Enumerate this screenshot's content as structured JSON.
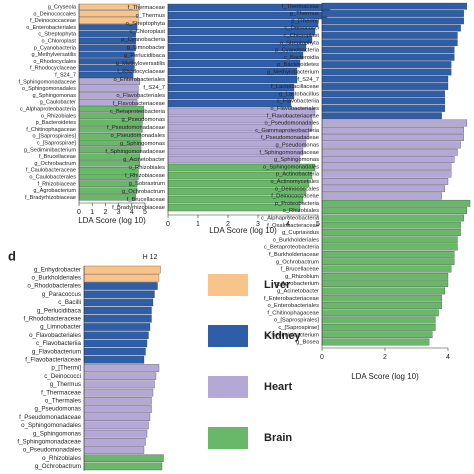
{
  "chart_data": [
    {
      "type": "bar",
      "orientation": "horizontal",
      "xlabel": "LDA Score (log 10)",
      "categories": [
        "g_Cryseola",
        "o_Deinococcales",
        "f_Deinococcaceae",
        "o_Enterobacteriales",
        "c_Streptophyta",
        "o_Chloroplast",
        "p_Cyanobacteria",
        "g_Methylversatilis",
        "o_Rhodocyclales",
        "f_Rhodocyclaceae",
        "f_S24_7",
        "f_Sphingomonadaceae",
        "o_Sphingomonadales",
        "g_Sphingomonas",
        "g_Caulobacter",
        "c_Alphaproteobacteria",
        "o_Rhizobiales",
        "p_Bacteroidetes",
        "f_Chitinophagaceae",
        "o_[Saprospirales]",
        "c_[Saprospirae]",
        "g_Sediminibacterium",
        "f_Brucellaceae",
        "g_Ochrobactrum",
        "f_Caulobacteraceae",
        "o_Caulobacterales",
        "f_Rhizobiaceae",
        "g_Agrobacterium",
        "f_Bradyrhizobiaceae"
      ],
      "values": [
        4.6,
        4.5,
        4.5,
        4.4,
        4.3,
        4.3,
        4.3,
        4.2,
        4.2,
        4.2,
        4.1,
        4.6,
        4.5,
        4.5,
        4.4,
        4.9,
        4.9,
        4.8,
        4.8,
        4.7,
        4.7,
        4.7,
        4.6,
        4.6,
        4.5,
        4.5,
        4.4,
        4.4,
        4.3
      ],
      "colors": [
        "#f9c38c",
        "#f9c38c",
        "#f9c38c",
        "#2f5ea8",
        "#2f5ea8",
        "#2f5ea8",
        "#2f5ea8",
        "#2f5ea8",
        "#2f5ea8",
        "#2f5ea8",
        "#2f5ea8",
        "#b4a8d6",
        "#b4a8d6",
        "#b4a8d6",
        "#b4a8d6",
        "#69b86a",
        "#69b86a",
        "#69b86a",
        "#69b86a",
        "#69b86a",
        "#69b86a",
        "#69b86a",
        "#69b86a",
        "#69b86a",
        "#69b86a",
        "#69b86a",
        "#69b86a",
        "#69b86a",
        "#69b86a"
      ],
      "xlim": [
        0,
        5
      ],
      "xticks": [
        0,
        1,
        2,
        3,
        4,
        5
      ]
    },
    {
      "type": "bar",
      "orientation": "horizontal",
      "xlabel": "LDA Score (log 10)",
      "categories": [
        "f_Thermaceae",
        "g_Thermus",
        "o_Streptophyta",
        "c_Chloroplast",
        "p_Cyanobacteria",
        "g_Limnobacter",
        "g_Perlucidibaca",
        "g_Methyloversatilis",
        "f_Rhodocyclaceae",
        "o_Enterobacteriales",
        "f_S24_7",
        "o_Flavobacteriales",
        "f_Flavobacteriaceae",
        "c_Betaproteobacteria",
        "g_Pseudomonas",
        "f_Pseudomonadaceae",
        "o_Pseudomonadales",
        "g_Sphingomonas",
        "f_Sphingomonadaceae",
        "g_Acinetobacter",
        "o_Rhizobiales",
        "f_Rhizobiaceae",
        "g_Sobrastrum",
        "g_Ochrobactrum",
        "f_Brucellaceae",
        "f_Bradyrhizobiaceae"
      ],
      "values": [
        5.4,
        5.3,
        5.0,
        4.9,
        4.8,
        4.6,
        4.5,
        4.4,
        4.3,
        4.3,
        4.2,
        4.2,
        4.1,
        4.9,
        4.8,
        4.8,
        4.7,
        4.6,
        4.5,
        4.4,
        4.9,
        4.8,
        4.7,
        4.6,
        4.5,
        4.4
      ],
      "colors": [
        "#2f5ea8",
        "#2f5ea8",
        "#2f5ea8",
        "#2f5ea8",
        "#2f5ea8",
        "#2f5ea8",
        "#2f5ea8",
        "#2f5ea8",
        "#2f5ea8",
        "#2f5ea8",
        "#2f5ea8",
        "#2f5ea8",
        "#2f5ea8",
        "#b4a8d6",
        "#b4a8d6",
        "#b4a8d6",
        "#b4a8d6",
        "#b4a8d6",
        "#b4a8d6",
        "#b4a8d6",
        "#69b86a",
        "#69b86a",
        "#69b86a",
        "#69b86a",
        "#69b86a",
        "#69b86a"
      ],
      "xlim": [
        0,
        5
      ],
      "xticks": [
        0,
        1,
        2,
        3,
        4,
        5
      ]
    },
    {
      "type": "bar",
      "orientation": "horizontal",
      "xlabel": "LDA Score (log 10)",
      "categories": [
        "f_Thermaceae",
        "g_Thermus",
        "p_[Thermi]",
        "c_Deinococci",
        "c_Chloroplast",
        "o_Streptophyta",
        "p_Cyanobacteria",
        "c_Bacteroidia",
        "p_Bacteroidetes",
        "g_Methylobacterium",
        "f_S24_7",
        "f_Lactobacillaceae",
        "g_Lactobacillus",
        "c_Flavobacteriia",
        "o_Flavobacteriales",
        "f_Flavobacteriaceae",
        "o_Pseudomonadales",
        "c_Gammaproteobacteria",
        "f_Pseudomonadaceae",
        "g_Pseudomonas",
        "f_Sphingomonadaceae",
        "g_Sphingomonas",
        "o_Sphingomonadales",
        "p_Actinobacteria",
        "o_Actinomycetales",
        "o_Deinococcales",
        "f_Deinococcaceae",
        "p_Proteobacteria",
        "o_Rhizobiales",
        "c_Alphaproteobacteria",
        "f_Oxalobacteraceae",
        "g_Cupriavidus",
        "o_Burkholderiales",
        "c_Betaproteobacteria",
        "f_Burkholderiaceae",
        "g_Ochrobactrum",
        "f_Brucellaceae",
        "g_Rhizobium",
        "g_Agrobacterium",
        "g_Acinetobacter",
        "f_Enterobacteriaceae",
        "o_Enterobacteriales",
        "f_Chitinophagaceae",
        "o_[Saprospirales]",
        "c_[Saprospirae]",
        "g_Sediminibacterium",
        "g_Bosea"
      ],
      "values": [
        4.6,
        4.5,
        4.5,
        4.4,
        4.3,
        4.3,
        4.2,
        4.2,
        4.1,
        4.1,
        4.0,
        4.0,
        3.9,
        3.9,
        3.9,
        3.8,
        4.6,
        4.5,
        4.5,
        4.4,
        4.3,
        4.2,
        4.1,
        4.1,
        4.0,
        3.9,
        3.8,
        4.7,
        4.6,
        4.5,
        4.4,
        4.4,
        4.3,
        4.3,
        4.2,
        4.2,
        4.1,
        4.0,
        4.0,
        3.9,
        3.8,
        3.8,
        3.7,
        3.6,
        3.6,
        3.5,
        3.4
      ],
      "colors": [
        "#2f5ea8",
        "#2f5ea8",
        "#2f5ea8",
        "#2f5ea8",
        "#2f5ea8",
        "#2f5ea8",
        "#2f5ea8",
        "#2f5ea8",
        "#2f5ea8",
        "#2f5ea8",
        "#2f5ea8",
        "#2f5ea8",
        "#2f5ea8",
        "#2f5ea8",
        "#2f5ea8",
        "#2f5ea8",
        "#b4a8d6",
        "#b4a8d6",
        "#b4a8d6",
        "#b4a8d6",
        "#b4a8d6",
        "#b4a8d6",
        "#b4a8d6",
        "#b4a8d6",
        "#b4a8d6",
        "#b4a8d6",
        "#b4a8d6",
        "#69b86a",
        "#69b86a",
        "#69b86a",
        "#69b86a",
        "#69b86a",
        "#69b86a",
        "#69b86a",
        "#69b86a",
        "#69b86a",
        "#69b86a",
        "#69b86a",
        "#69b86a",
        "#69b86a",
        "#69b86a",
        "#69b86a",
        "#69b86a",
        "#69b86a",
        "#69b86a",
        "#69b86a",
        "#69b86a"
      ],
      "xlim": [
        0,
        4
      ],
      "xticks": [
        0,
        2,
        4
      ]
    },
    {
      "type": "bar",
      "orientation": "horizontal",
      "panel_label": "d",
      "title": "H 12",
      "categories": [
        "g_Enhydrobacter",
        "o_Burkholderiales",
        "o_Rhodobacterales",
        "g_Paracoccus",
        "c_Bacilli",
        "g_Perlucidibaca",
        "f_Rhodobacteraceae",
        "g_Limnobacter",
        "o_Flavobacteriales",
        "c_Flavobacteriia",
        "g_Flavobacterium",
        "f_Flavobacteriaceae",
        "p_[Thermi]",
        "c_Deinococci",
        "g_Thermus",
        "f_Thermaceae",
        "o_Thermales",
        "g_Pseudomonas",
        "f_Pseudomonadaceae",
        "o_Sphingomonadales",
        "g_Sphingomonas",
        "f_Sphingomonadaceae",
        "o_Pseudomonadales",
        "o_Rhizobiales",
        "g_Ochrobactrum"
      ],
      "values": [
        5.1,
        5.0,
        4.9,
        4.7,
        4.6,
        4.5,
        4.5,
        4.4,
        4.3,
        4.2,
        4.1,
        4.0,
        5.0,
        4.8,
        4.7,
        4.6,
        4.5,
        4.5,
        4.4,
        4.3,
        4.2,
        4.1,
        4.0,
        5.3,
        5.2
      ],
      "colors": [
        "#f9c38c",
        "#f9c38c",
        "#2f5ea8",
        "#2f5ea8",
        "#2f5ea8",
        "#2f5ea8",
        "#2f5ea8",
        "#2f5ea8",
        "#2f5ea8",
        "#2f5ea8",
        "#2f5ea8",
        "#2f5ea8",
        "#b4a8d6",
        "#b4a8d6",
        "#b4a8d6",
        "#b4a8d6",
        "#b4a8d6",
        "#b4a8d6",
        "#b4a8d6",
        "#b4a8d6",
        "#b4a8d6",
        "#b4a8d6",
        "#b4a8d6",
        "#69b86a",
        "#69b86a"
      ],
      "xlim": [
        0,
        5.4
      ]
    }
  ],
  "legend": [
    {
      "label": "Liver",
      "color": "#f9c38c"
    },
    {
      "label": "Kidney",
      "color": "#2f5ea8"
    },
    {
      "label": "Heart",
      "color": "#b4a8d6"
    },
    {
      "label": "Brain",
      "color": "#69b86a"
    }
  ]
}
